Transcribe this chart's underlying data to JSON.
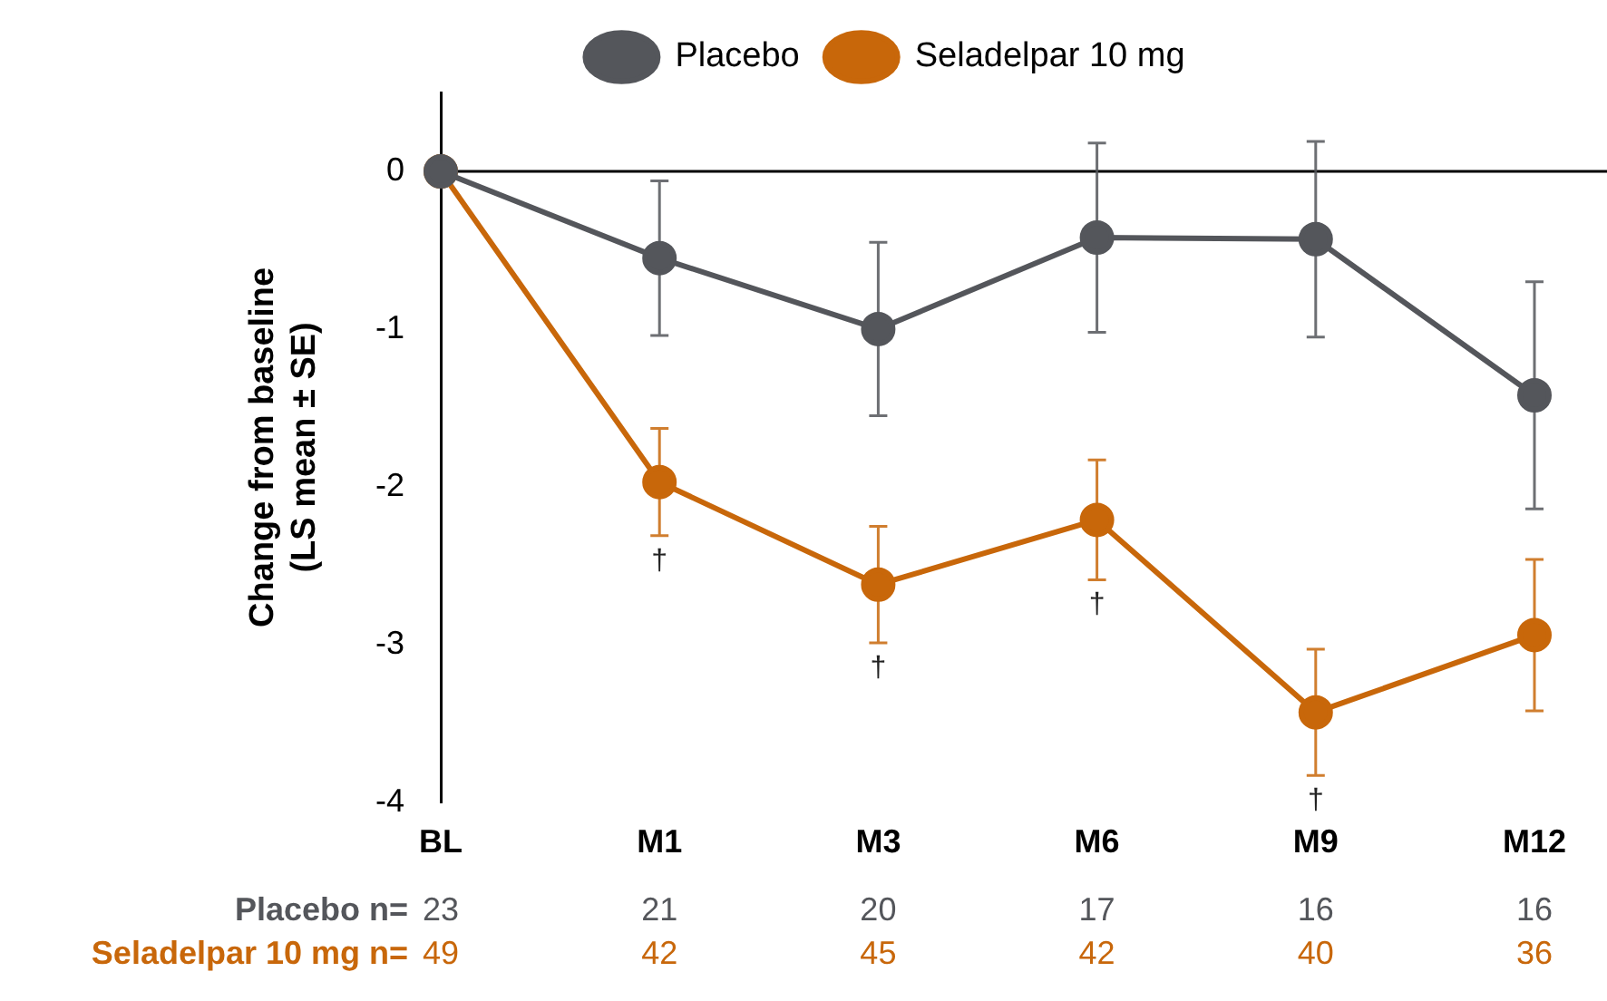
{
  "chart_data": {
    "type": "line",
    "ylabel": "Change from baseline (LS mean ± SE)",
    "categories": [
      "BL",
      "M1",
      "M3",
      "M6",
      "M9",
      "M12"
    ],
    "ylim": [
      -4,
      0.5
    ],
    "yticks": [
      -4,
      -3,
      -2,
      -1,
      0
    ],
    "grid": false,
    "legend": "top",
    "marker": "circle",
    "line_style": "solid",
    "series": [
      {
        "name": "Placebo",
        "color": "#54565b",
        "values": [
          0,
          -0.55,
          -1.0,
          -0.42,
          -0.43,
          -1.42
        ],
        "errors": [
          null,
          0.49,
          0.55,
          0.6,
          0.62,
          0.72
        ]
      },
      {
        "name": "Seladelpar 10 mg",
        "color": "#c8670a",
        "values": [
          0,
          -1.97,
          -2.62,
          -2.21,
          -3.43,
          -2.94
        ],
        "errors": [
          null,
          0.34,
          0.37,
          0.38,
          0.4,
          0.48
        ]
      }
    ],
    "ref_lines": [
      {
        "axis": "y",
        "value": 0,
        "color": "#000000"
      }
    ],
    "annotations": [
      {
        "text": "†",
        "x": "M1",
        "y": -1.97
      },
      {
        "text": "†",
        "x": "M3",
        "y": -2.62
      },
      {
        "text": "†",
        "x": "M6",
        "y": -2.21
      },
      {
        "text": "†",
        "x": "M9",
        "y": -3.43
      },
      "Placebo n=",
      "23",
      "21",
      "20",
      "17",
      "16",
      "16",
      "Seladelpar 10 mg n=",
      "49",
      "42",
      "45",
      "42",
      "40",
      "36"
    ]
  }
}
